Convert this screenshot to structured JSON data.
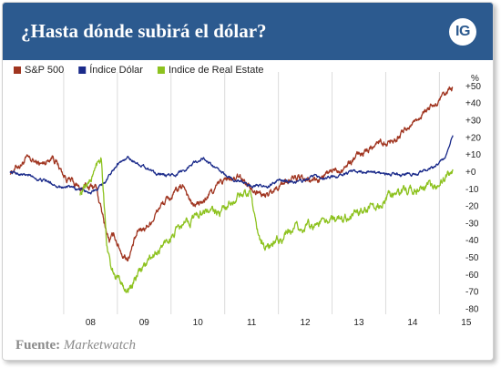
{
  "header": {
    "title": "¿Hasta dónde subirá el dólar?",
    "logo_text": "IG"
  },
  "footer": {
    "source_label": "Fuente:",
    "source_value": "Marketwatch"
  },
  "colors": {
    "header_bg": "#2c5a8f",
    "sp500": "#a03520",
    "dollar": "#1a2a8a",
    "real_estate": "#8dc21f"
  },
  "chart_data": {
    "type": "line",
    "y_unit": "%",
    "ylim": [
      -80,
      55
    ],
    "y_ticks": [
      -80,
      -70,
      -60,
      -50,
      -40,
      -30,
      -20,
      -10,
      0,
      10,
      20,
      30,
      40,
      50
    ],
    "y_tick_labels": [
      "-80",
      "-70",
      "-60",
      "-50",
      "-40",
      "-30",
      "-20",
      "-10",
      "+0",
      "+10",
      "+20",
      "+30",
      "+40",
      "+50"
    ],
    "x_range": [
      2007.0,
      2015.35
    ],
    "x_ticks": [
      2008,
      2009,
      2010,
      2011,
      2012,
      2013,
      2014,
      2015
    ],
    "x_tick_labels": [
      "08",
      "09",
      "10",
      "11",
      "12",
      "13",
      "14",
      "15"
    ],
    "legend_position": "top-left",
    "grid": "vertical",
    "series": [
      {
        "name": "S&P 500",
        "color": "#a03520",
        "x": [
          2007.0,
          2007.3,
          2007.6,
          2007.8,
          2008.0,
          2008.3,
          2008.6,
          2008.75,
          2008.85,
          2008.95,
          2009.1,
          2009.2,
          2009.4,
          2009.6,
          2009.8,
          2010.0,
          2010.25,
          2010.4,
          2010.6,
          2010.75,
          2011.0,
          2011.3,
          2011.6,
          2011.75,
          2012.0,
          2012.3,
          2012.5,
          2012.8,
          2013.0,
          2013.3,
          2013.6,
          2013.9,
          2014.1,
          2014.4,
          2014.7,
          2014.9,
          2015.0,
          2015.15,
          2015.25
        ],
        "values": [
          0,
          7,
          4,
          10,
          -2,
          -10,
          -8,
          -30,
          -40,
          -38,
          -48,
          -50,
          -35,
          -30,
          -20,
          -15,
          -8,
          -20,
          -18,
          -12,
          -5,
          -4,
          -10,
          -15,
          -8,
          -3,
          -6,
          -4,
          0,
          5,
          12,
          18,
          18,
          25,
          35,
          38,
          40,
          45,
          48
        ]
      },
      {
        "name": "Índice Dólar",
        "color": "#1a2a8a",
        "x": [
          2007.0,
          2007.3,
          2007.6,
          2007.9,
          2008.2,
          2008.5,
          2008.8,
          2009.0,
          2009.2,
          2009.5,
          2009.9,
          2010.2,
          2010.4,
          2010.6,
          2010.9,
          2011.2,
          2011.5,
          2011.8,
          2012.0,
          2012.4,
          2012.7,
          2013.0,
          2013.4,
          2013.7,
          2014.0,
          2014.3,
          2014.6,
          2014.9,
          2015.1,
          2015.25
        ],
        "values": [
          0,
          -2,
          -5,
          -8,
          -10,
          -12,
          -5,
          5,
          8,
          3,
          -3,
          0,
          5,
          8,
          0,
          -5,
          -8,
          -9,
          -5,
          -6,
          -3,
          -3,
          0,
          0,
          -1,
          -2,
          -1,
          2,
          8,
          20
        ]
      },
      {
        "name": "Indice de Real Estate",
        "color": "#8dc21f",
        "x": [
          2008.3,
          2008.5,
          2008.7,
          2008.8,
          2008.9,
          2009.1,
          2009.2,
          2009.5,
          2009.8,
          2010.0,
          2010.3,
          2010.6,
          2010.9,
          2011.2,
          2011.5,
          2011.6,
          2011.8,
          2012.0,
          2012.3,
          2012.7,
          2013.0,
          2013.3,
          2013.6,
          2013.9,
          2014.1,
          2014.4,
          2014.7,
          2014.9,
          2015.1,
          2015.25
        ],
        "values": [
          -12,
          -5,
          10,
          -40,
          -60,
          -65,
          -70,
          -55,
          -45,
          -38,
          -30,
          -22,
          -25,
          -15,
          -12,
          -38,
          -45,
          -40,
          -35,
          -30,
          -28,
          -25,
          -22,
          -18,
          -15,
          -12,
          -8,
          -8,
          -5,
          0
        ]
      }
    ]
  }
}
